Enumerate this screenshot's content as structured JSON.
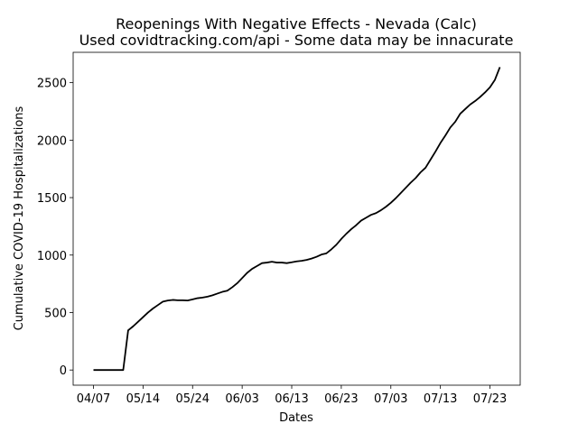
{
  "chart_data": {
    "type": "line",
    "title": "Reopenings With Negative Effects - Nevada (Calc)",
    "subtitle": "Used covidtracking.com/api - Some data may be innacurate",
    "x_label": "Dates",
    "y_label": "Cumulative COVID-19 Hospitalizations",
    "categories": [
      "04/07",
      null,
      null,
      null,
      null,
      null,
      null,
      null,
      null,
      null,
      "05/14",
      null,
      null,
      null,
      null,
      null,
      null,
      null,
      null,
      null,
      "05/24",
      null,
      null,
      null,
      null,
      null,
      null,
      null,
      null,
      null,
      "06/03",
      null,
      null,
      null,
      null,
      null,
      null,
      null,
      null,
      null,
      "06/13",
      null,
      null,
      null,
      null,
      null,
      null,
      null,
      null,
      null,
      "06/23",
      null,
      null,
      null,
      null,
      null,
      null,
      null,
      null,
      null,
      "07/03",
      null,
      null,
      null,
      null,
      null,
      null,
      null,
      null,
      null,
      "07/13",
      null,
      null,
      null,
      null,
      null,
      null,
      null,
      null,
      null,
      "07/23",
      null,
      null
    ],
    "values": [
      0,
      0,
      0,
      0,
      0,
      0,
      0,
      345,
      380,
      420,
      460,
      500,
      535,
      565,
      595,
      605,
      610,
      607,
      607,
      605,
      615,
      625,
      630,
      638,
      650,
      665,
      680,
      690,
      720,
      755,
      800,
      845,
      880,
      905,
      930,
      935,
      942,
      935,
      935,
      930,
      937,
      945,
      950,
      958,
      970,
      985,
      1005,
      1015,
      1050,
      1090,
      1140,
      1185,
      1225,
      1260,
      1300,
      1325,
      1350,
      1365,
      1390,
      1420,
      1455,
      1495,
      1540,
      1585,
      1630,
      1670,
      1720,
      1760,
      1830,
      1900,
      1975,
      2040,
      2110,
      2160,
      2230,
      2270,
      2310,
      2340,
      2375,
      2415,
      2460,
      2525,
      2635
    ],
    "color": "#000000",
    "ylim": [
      -132,
      2764
    ],
    "yticks": [
      0,
      500,
      1000,
      1500,
      2000,
      2500
    ]
  }
}
